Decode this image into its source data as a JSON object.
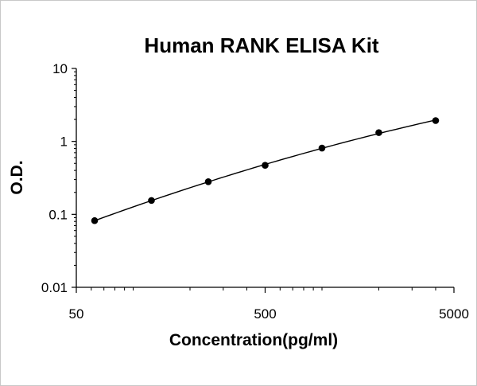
{
  "chart_data": {
    "type": "line",
    "title": "Human RANK ELISA Kit",
    "xlabel": "Concentration(pg/ml)",
    "ylabel": "O.D.",
    "x_scale": "log",
    "y_scale": "log",
    "xlim": [
      50,
      5000
    ],
    "ylim": [
      0.01,
      10
    ],
    "x_ticks": [
      "50",
      "500",
      "5000"
    ],
    "y_ticks": [
      "0.01",
      "0.1",
      "1",
      "10"
    ],
    "grid": false,
    "legend": "none",
    "marker_color": "#000000",
    "line_color": "#000000",
    "series": [
      {
        "x": [
          62.5,
          125,
          250,
          500,
          1000,
          2000,
          4000
        ],
        "y": [
          0.082,
          0.155,
          0.28,
          0.47,
          0.81,
          1.32,
          1.93
        ]
      }
    ]
  }
}
